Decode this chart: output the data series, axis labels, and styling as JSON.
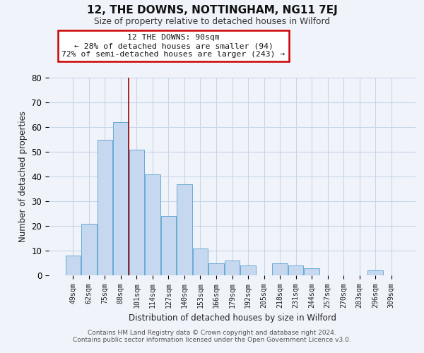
{
  "title": "12, THE DOWNS, NOTTINGHAM, NG11 7EJ",
  "subtitle": "Size of property relative to detached houses in Wilford",
  "xlabel": "Distribution of detached houses by size in Wilford",
  "ylabel": "Number of detached properties",
  "bar_labels": [
    "49sqm",
    "62sqm",
    "75sqm",
    "88sqm",
    "101sqm",
    "114sqm",
    "127sqm",
    "140sqm",
    "153sqm",
    "166sqm",
    "179sqm",
    "192sqm",
    "205sqm",
    "218sqm",
    "231sqm",
    "244sqm",
    "257sqm",
    "270sqm",
    "283sqm",
    "296sqm",
    "309sqm"
  ],
  "bar_values": [
    8,
    21,
    55,
    62,
    51,
    41,
    24,
    37,
    11,
    5,
    6,
    4,
    0,
    5,
    4,
    3,
    0,
    0,
    0,
    2,
    0
  ],
  "bar_color": "#c5d8f0",
  "bar_edge_color": "#6aaad4",
  "vline_x": 3.5,
  "vline_color": "#990000",
  "annotation_text": "12 THE DOWNS: 90sqm\n← 28% of detached houses are smaller (94)\n72% of semi-detached houses are larger (243) →",
  "annotation_box_color": "white",
  "annotation_box_edge": "#cc0000",
  "ylim": [
    0,
    80
  ],
  "yticks": [
    0,
    10,
    20,
    30,
    40,
    50,
    60,
    70,
    80
  ],
  "footer_line1": "Contains HM Land Registry data © Crown copyright and database right 2024.",
  "footer_line2": "Contains public sector information licensed under the Open Government Licence v3.0.",
  "background_color": "#f0f4fa",
  "grid_color": "#c8d4e8"
}
